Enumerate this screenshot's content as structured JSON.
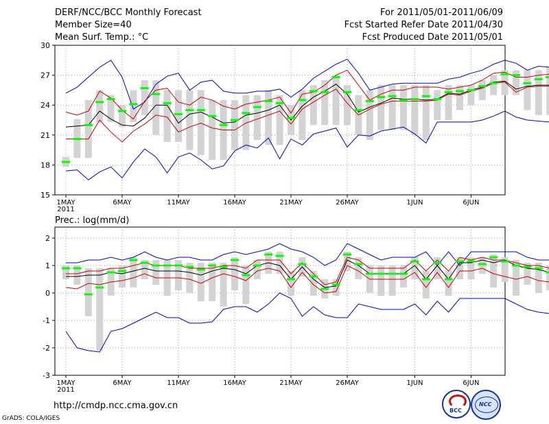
{
  "header": {
    "title": "DERF/NCC/BCC Monthly Forecast",
    "member_size": "Member Size=40",
    "variable": "Mean Surf. Temp.: °C",
    "period": "For 2011/05/01-2011/06/09",
    "fcst_started": "Fcst Started Refer Date 2011/04/30",
    "fcst_produced": "Fcst Produced Date 2011/05/01"
  },
  "footer": {
    "url": "http://cmdp.ncc.cma.gov.cn",
    "credit": "GrADS: COLA/IGES",
    "logo_bcc": "BCC",
    "logo_ncc": "NCC"
  },
  "colors": {
    "box": "#d3d3d3",
    "median": "#00ff00",
    "spread": "#0000cc",
    "percentile": "#cc0000",
    "mean": "#000000",
    "grid": "#999999"
  },
  "chart_data": [
    {
      "type": "line",
      "title": "Mean Surf. Temp.: °C",
      "xlabel": "",
      "ylabel": "",
      "ylim": [
        15,
        30
      ],
      "yticks": [
        "15",
        "18",
        "21",
        "24",
        "27",
        "30"
      ],
      "ytick_values": [
        15,
        18,
        21,
        24,
        27,
        30
      ],
      "xlim": [
        0,
        40
      ],
      "xticks": [
        "1MAY",
        "6MAY",
        "11MAY",
        "16MAY",
        "21MAY",
        "26MAY",
        "1JUN",
        "6JUN"
      ],
      "xtick_days": [
        0,
        5,
        10,
        15,
        20,
        25,
        31,
        36
      ],
      "xtick_year": "2011",
      "series": [
        {
          "name": "max",
          "values": [
            25.2,
            25.8,
            26.8,
            27.8,
            28.5,
            26.8,
            23.6,
            24.3,
            26.1,
            26.9,
            27.2,
            25.5,
            26.3,
            26.5,
            25.4,
            25.2,
            25.2,
            25.4,
            25.4,
            25.6,
            24.8,
            25.6,
            26.7,
            27.4,
            28.1,
            28.6,
            27.2,
            25.5,
            25.8,
            26.1,
            26.2,
            26.2,
            26.2,
            26.2,
            26.6,
            26.8,
            27.2,
            27.5,
            28.1,
            28.5,
            28.2,
            27.5,
            27.9,
            27.8
          ]
        },
        {
          "name": "p90",
          "values": [
            23.3,
            23.0,
            23.4,
            25.4,
            24.7,
            23.5,
            22.6,
            24.4,
            25.5,
            25.7,
            24.3,
            24.0,
            24.8,
            24.5,
            23.9,
            23.6,
            24.1,
            24.3,
            24.5,
            24.8,
            23.2,
            25.1,
            25.3,
            26.0,
            27.0,
            27.5,
            26.0,
            24.5,
            25.1,
            25.5,
            25.5,
            25.8,
            25.8,
            25.8,
            25.6,
            25.8,
            26.0,
            26.5,
            27.2,
            27.3,
            26.8,
            26.8,
            27.0,
            27.1
          ]
        },
        {
          "name": "mean",
          "values": [
            21.8,
            21.9,
            22.0,
            23.4,
            22.6,
            22.0,
            21.9,
            22.7,
            24.0,
            24.0,
            22.2,
            23.1,
            23.3,
            22.8,
            22.2,
            22.3,
            23.0,
            23.2,
            23.5,
            24.0,
            22.5,
            23.9,
            24.8,
            25.4,
            26.1,
            25.1,
            23.3,
            23.8,
            24.2,
            24.7,
            24.6,
            24.6,
            24.5,
            24.6,
            25.2,
            25.1,
            25.5,
            25.8,
            26.3,
            26.4,
            25.6,
            25.9,
            26.0,
            26.0
          ]
        },
        {
          "name": "p10",
          "values": [
            20.6,
            20.6,
            20.6,
            22.5,
            21.3,
            20.3,
            21.4,
            22.1,
            23.0,
            22.8,
            21.3,
            21.8,
            22.2,
            21.7,
            21.5,
            21.5,
            22.2,
            22.6,
            23.0,
            23.4,
            22.1,
            23.6,
            24.3,
            25.0,
            25.6,
            24.2,
            23.0,
            23.6,
            24.1,
            24.4,
            24.4,
            24.4,
            24.4,
            24.5,
            25.1,
            25.0,
            25.4,
            25.7,
            26.2,
            26.3,
            25.3,
            25.8,
            25.9,
            25.9
          ]
        },
        {
          "name": "min",
          "values": [
            17.4,
            17.5,
            16.5,
            17.3,
            17.8,
            16.7,
            18.3,
            19.6,
            18.8,
            17.2,
            18.8,
            19.2,
            18.5,
            17.6,
            17.9,
            19.4,
            20.0,
            19.7,
            20.7,
            18.6,
            20.6,
            20.0,
            21.1,
            21.4,
            21.7,
            19.8,
            21.0,
            20.9,
            21.4,
            21.6,
            21.8,
            21.1,
            20.2,
            22.3,
            22.3,
            22.3,
            22.3,
            22.5,
            22.9,
            23.4,
            22.8,
            22.5,
            22.4,
            22.3
          ]
        },
        {
          "name": "median",
          "values": [
            18.3,
            20.6,
            22.0,
            24.3,
            24.6,
            23.4,
            24.1,
            25.7,
            25.1,
            24.2,
            23.1,
            23.5,
            23.5,
            22.9,
            22.0,
            22.5,
            23.2,
            23.8,
            24.4,
            24.2,
            22.7,
            24.5,
            25.4,
            25.3,
            26.8,
            25.3,
            23.5,
            24.4,
            24.8,
            24.9,
            24.5,
            24.6,
            24.9,
            24.6,
            25.3,
            25.4,
            25.5,
            25.9,
            26.2,
            27.1,
            27.0,
            26.2,
            26.6,
            26.8
          ]
        },
        {
          "name": "box_top",
          "values": [
            18.8,
            22.6,
            24.5,
            25.5,
            25.0,
            24.0,
            25.5,
            26.5,
            26.5,
            25.5,
            25.5,
            25.5,
            25.5,
            24.5,
            24.5,
            24.5,
            25.0,
            25.0,
            25.5,
            25.0,
            24.0,
            25.5,
            26.0,
            26.5,
            27.0,
            26.0,
            25.0,
            25.5,
            26.0,
            26.0,
            26.0,
            26.0,
            26.0,
            25.5,
            26.0,
            26.0,
            26.0,
            26.5,
            27.0,
            27.5,
            27.5,
            27.5,
            27.5,
            27.8
          ]
        },
        {
          "name": "box_bottom",
          "values": [
            17.8,
            18.7,
            18.7,
            22.3,
            22.3,
            21.8,
            22.3,
            23.0,
            21.0,
            20.3,
            20.3,
            19.5,
            19.0,
            18.5,
            18.5,
            19.5,
            19.5,
            20.5,
            20.0,
            20.0,
            21.0,
            20.5,
            22.0,
            22.0,
            22.0,
            22.0,
            21.0,
            20.5,
            21.5,
            21.5,
            21.5,
            21.0,
            20.5,
            22.5,
            22.5,
            23.5,
            24.0,
            24.5,
            25.0,
            25.0,
            25.0,
            23.5,
            23.0,
            23.0
          ]
        }
      ]
    },
    {
      "type": "line",
      "title": "Prec.: log(mm/d)",
      "xlabel": "",
      "ylabel": "",
      "ylim": [
        -3,
        2.4
      ],
      "yticks": [
        "-3",
        "-2",
        "-1",
        "0",
        "1",
        "2"
      ],
      "ytick_values": [
        -3,
        -2,
        -1,
        0,
        1,
        2
      ],
      "xlim": [
        0,
        40
      ],
      "xticks": [
        "1MAY",
        "6MAY",
        "11MAY",
        "16MAY",
        "21MAY",
        "26MAY",
        "1JUN",
        "6JUN"
      ],
      "xtick_days": [
        0,
        5,
        10,
        15,
        20,
        25,
        31,
        36
      ],
      "xtick_year": "2011",
      "series": [
        {
          "name": "max",
          "values": [
            1.1,
            1.1,
            1.2,
            1.2,
            1.3,
            1.2,
            1.3,
            1.5,
            1.3,
            1.2,
            1.3,
            1.3,
            1.2,
            1.2,
            1.4,
            1.5,
            1.4,
            1.5,
            1.6,
            1.8,
            1.6,
            1.5,
            1.3,
            1.0,
            1.2,
            1.8,
            1.6,
            1.4,
            1.2,
            1.3,
            1.3,
            1.3,
            1.5,
            1.0,
            1.5,
            1.0,
            1.5,
            1.5,
            1.5,
            1.5,
            1.5,
            1.3,
            1.2,
            1.2
          ]
        },
        {
          "name": "p90",
          "values": [
            0.7,
            0.7,
            0.8,
            0.8,
            0.9,
            0.9,
            1.0,
            1.1,
            1.0,
            1.0,
            1.0,
            0.9,
            0.9,
            0.9,
            1.0,
            1.0,
            0.9,
            1.2,
            1.2,
            1.2,
            0.7,
            1.1,
            0.7,
            0.3,
            0.4,
            1.3,
            1.2,
            0.9,
            0.9,
            0.9,
            0.9,
            1.2,
            0.8,
            1.2,
            0.8,
            1.3,
            1.2,
            1.3,
            1.2,
            1.2,
            1.1,
            1.0,
            1.0,
            0.9
          ]
        },
        {
          "name": "mean",
          "values": [
            0.6,
            0.6,
            0.65,
            0.65,
            0.75,
            0.7,
            0.8,
            0.9,
            0.8,
            0.8,
            0.8,
            0.75,
            0.65,
            0.8,
            0.9,
            0.85,
            0.7,
            1.0,
            1.1,
            1.0,
            0.5,
            0.95,
            0.5,
            0.2,
            0.25,
            1.2,
            1.0,
            0.7,
            0.7,
            0.7,
            0.7,
            1.0,
            0.5,
            1.0,
            0.5,
            1.1,
            1.1,
            1.2,
            1.1,
            1.2,
            1.0,
            0.9,
            0.85,
            0.75
          ]
        },
        {
          "name": "p10",
          "values": [
            0.2,
            0.15,
            0.35,
            0.3,
            0.4,
            0.45,
            0.55,
            0.7,
            0.55,
            0.55,
            0.55,
            0.5,
            0.35,
            0.55,
            0.7,
            0.6,
            0.45,
            0.8,
            0.9,
            0.8,
            0.2,
            0.75,
            0.3,
            0.0,
            0.05,
            1.0,
            0.8,
            0.5,
            0.5,
            0.5,
            0.5,
            0.75,
            0.2,
            0.75,
            0.2,
            0.8,
            0.8,
            0.9,
            0.7,
            0.6,
            0.5,
            0.6,
            0.45,
            0.4
          ]
        },
        {
          "name": "min",
          "values": [
            -1.4,
            -2.0,
            -2.1,
            -2.15,
            -1.4,
            -1.3,
            -1.1,
            -0.9,
            -0.7,
            -0.9,
            -0.9,
            -1.1,
            -1.1,
            -1.05,
            -0.6,
            -0.5,
            -0.5,
            -0.7,
            -0.4,
            0.0,
            -0.2,
            -0.85,
            -0.5,
            -0.8,
            -0.9,
            -0.9,
            -0.4,
            -0.5,
            -0.6,
            -0.6,
            -0.6,
            -0.4,
            -0.8,
            -0.3,
            -0.7,
            -0.2,
            -0.2,
            -0.2,
            -0.2,
            -0.2,
            -0.4,
            -0.6,
            -0.7,
            -0.75
          ]
        },
        {
          "name": "median",
          "values": [
            0.9,
            0.9,
            -0.05,
            0.2,
            0.75,
            0.8,
            1.2,
            1.1,
            1.0,
            1.0,
            1.0,
            0.95,
            0.85,
            1.0,
            0.95,
            1.2,
            0.65,
            1.0,
            1.4,
            1.35,
            0.5,
            1.05,
            0.6,
            0.15,
            0.3,
            1.4,
            1.05,
            0.7,
            0.7,
            0.7,
            0.7,
            1.15,
            0.5,
            1.1,
            0.5,
            1.15,
            1.15,
            1.05,
            1.3,
            1.15,
            1.0,
            0.95,
            0.9,
            0.75
          ]
        },
        {
          "name": "box_top",
          "values": [
            1.0,
            1.0,
            0.9,
            0.9,
            0.9,
            1.0,
            1.3,
            1.2,
            1.2,
            1.2,
            1.2,
            1.1,
            1.1,
            1.1,
            1.1,
            1.3,
            1.0,
            1.2,
            1.5,
            1.5,
            0.8,
            1.3,
            0.8,
            0.5,
            0.5,
            1.5,
            1.3,
            1.0,
            1.0,
            1.0,
            1.0,
            1.3,
            0.8,
            1.3,
            0.8,
            1.3,
            1.3,
            1.3,
            1.4,
            1.3,
            1.2,
            1.1,
            1.1,
            1.0
          ]
        },
        {
          "name": "box_bottom",
          "values": [
            0.5,
            0.3,
            -0.85,
            -2.1,
            -0.1,
            0.2,
            0.2,
            0.5,
            0.3,
            -0.1,
            0.1,
            0.0,
            -0.3,
            -0.3,
            -0.5,
            0.1,
            -0.4,
            0.5,
            0.7,
            0.7,
            -0.1,
            0.6,
            -0.1,
            -0.2,
            -0.1,
            0.8,
            0.5,
            0.0,
            -0.1,
            -0.1,
            0.2,
            0.5,
            -0.2,
            0.5,
            -0.1,
            0.5,
            0.5,
            0.7,
            0.2,
            0.4,
            -0.1,
            0.3,
            0.0,
            0.1
          ]
        }
      ]
    }
  ]
}
